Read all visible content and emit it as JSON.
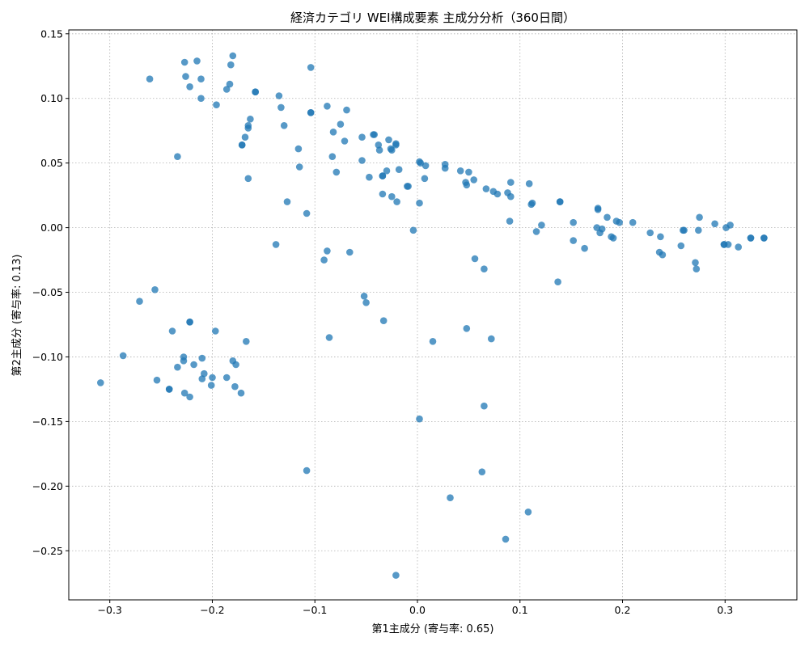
{
  "chart_data": {
    "type": "scatter",
    "title": "経済カテゴリ WEI構成要素 主成分分析（360日間）",
    "xlabel": "第1主成分 (寄与率: 0.65)",
    "ylabel": "第2主成分 (寄与率: 0.13)",
    "xlim": [
      -0.34,
      0.37
    ],
    "ylim": [
      -0.288,
      0.153
    ],
    "xticks": [
      -0.3,
      -0.2,
      -0.1,
      0.0,
      0.1,
      0.2,
      0.3
    ],
    "xtick_labels": [
      "−0.3",
      "−0.2",
      "−0.1",
      "0.0",
      "0.1",
      "0.2",
      "0.3"
    ],
    "yticks": [
      -0.25,
      -0.2,
      -0.15,
      -0.1,
      -0.05,
      0.0,
      0.05,
      0.1,
      0.15
    ],
    "ytick_labels": [
      "−0.25",
      "−0.20",
      "−0.15",
      "−0.10",
      "−0.05",
      "0.00",
      "0.05",
      "0.10",
      "0.15"
    ],
    "grid": true,
    "legend": "none",
    "marker_color": "#1f77b4",
    "marker_alpha": 0.75,
    "x": [
      -0.261,
      -0.227,
      -0.215,
      -0.18,
      -0.182,
      -0.226,
      -0.222,
      -0.211,
      -0.183,
      -0.186,
      -0.158,
      -0.158,
      -0.211,
      -0.196,
      -0.234,
      -0.163,
      -0.165,
      -0.165,
      -0.168,
      -0.171,
      -0.171,
      -0.165,
      -0.135,
      -0.133,
      -0.13,
      -0.104,
      -0.104,
      -0.116,
      -0.115,
      -0.127,
      -0.108,
      -0.104,
      -0.088,
      -0.069,
      -0.075,
      -0.082,
      -0.071,
      -0.054,
      -0.043,
      -0.042,
      -0.038,
      -0.037,
      -0.028,
      -0.021,
      -0.021,
      -0.025,
      -0.026,
      -0.083,
      -0.079,
      -0.054,
      -0.047,
      -0.034,
      -0.03,
      -0.034,
      -0.018,
      -0.01,
      -0.009,
      0.002,
      0.003,
      0.008,
      -0.034,
      -0.025,
      -0.02,
      0.007,
      0.002,
      0.027,
      0.027,
      0.042,
      0.05,
      0.047,
      0.048,
      0.055,
      0.067,
      0.074,
      0.078,
      0.088,
      0.091,
      0.091,
      0.109,
      0.112,
      0.111,
      0.139,
      0.139,
      0.176,
      0.176,
      0.121,
      0.116,
      0.152,
      0.09,
      0.175,
      0.194,
      0.185,
      0.197,
      0.21,
      0.152,
      0.163,
      0.178,
      0.18,
      0.189,
      0.191,
      0.227,
      0.237,
      0.259,
      0.26,
      0.275,
      0.29,
      0.301,
      0.303,
      0.305,
      0.325,
      0.325,
      0.338,
      0.338,
      0.299,
      0.299,
      0.274,
      0.313,
      0.257,
      0.236,
      0.239,
      0.271,
      0.272,
      -0.004,
      -0.138,
      -0.088,
      -0.091,
      -0.066,
      0.056,
      0.065,
      -0.256,
      -0.271,
      -0.222,
      -0.222,
      -0.239,
      -0.197,
      -0.167,
      -0.287,
      -0.309,
      -0.254,
      -0.228,
      -0.228,
      -0.21,
      -0.218,
      -0.234,
      -0.208,
      -0.18,
      -0.177,
      -0.186,
      -0.2,
      -0.21,
      -0.201,
      -0.178,
      -0.172,
      -0.242,
      -0.242,
      -0.227,
      -0.222,
      -0.052,
      -0.05,
      -0.033,
      -0.086,
      0.015,
      0.048,
      0.072,
      0.065,
      0.002,
      -0.108,
      0.063,
      0.032,
      0.108,
      0.086,
      -0.021,
      0.137
    ],
    "y": [
      0.115,
      0.128,
      0.129,
      0.133,
      0.126,
      0.117,
      0.109,
      0.115,
      0.111,
      0.107,
      0.105,
      0.105,
      0.1,
      0.095,
      0.055,
      0.084,
      0.079,
      0.077,
      0.07,
      0.064,
      0.064,
      0.038,
      0.102,
      0.093,
      0.079,
      0.124,
      0.089,
      0.061,
      0.047,
      0.02,
      0.011,
      0.089,
      0.094,
      0.091,
      0.08,
      0.074,
      0.067,
      0.07,
      0.072,
      0.072,
      0.064,
      0.06,
      0.068,
      0.065,
      0.064,
      0.06,
      0.061,
      0.055,
      0.043,
      0.052,
      0.039,
      0.04,
      0.044,
      0.04,
      0.045,
      0.032,
      0.032,
      0.051,
      0.05,
      0.048,
      0.026,
      0.024,
      0.02,
      0.038,
      0.019,
      0.049,
      0.046,
      0.044,
      0.043,
      0.035,
      0.033,
      0.037,
      0.03,
      0.028,
      0.026,
      0.027,
      0.035,
      0.024,
      0.034,
      0.019,
      0.018,
      0.02,
      0.02,
      0.015,
      0.014,
      0.002,
      -0.003,
      0.004,
      0.005,
      0.0,
      0.005,
      0.008,
      0.004,
      0.004,
      -0.01,
      -0.016,
      -0.004,
      -0.001,
      -0.007,
      -0.008,
      -0.004,
      -0.007,
      -0.002,
      -0.002,
      0.008,
      0.003,
      0.0,
      -0.013,
      0.002,
      -0.008,
      -0.008,
      -0.008,
      -0.008,
      -0.013,
      -0.013,
      -0.002,
      -0.015,
      -0.014,
      -0.019,
      -0.021,
      -0.027,
      -0.032,
      -0.002,
      -0.013,
      -0.018,
      -0.025,
      -0.019,
      -0.024,
      -0.032,
      -0.048,
      -0.057,
      -0.073,
      -0.073,
      -0.08,
      -0.08,
      -0.088,
      -0.099,
      -0.12,
      -0.118,
      -0.1,
      -0.103,
      -0.101,
      -0.106,
      -0.108,
      -0.113,
      -0.103,
      -0.106,
      -0.116,
      -0.116,
      -0.117,
      -0.122,
      -0.123,
      -0.128,
      -0.125,
      -0.125,
      -0.128,
      -0.131,
      -0.053,
      -0.058,
      -0.072,
      -0.085,
      -0.088,
      -0.078,
      -0.086,
      -0.138,
      -0.148,
      -0.188,
      -0.189,
      -0.209,
      -0.22,
      -0.241,
      -0.269,
      -0.042
    ]
  }
}
